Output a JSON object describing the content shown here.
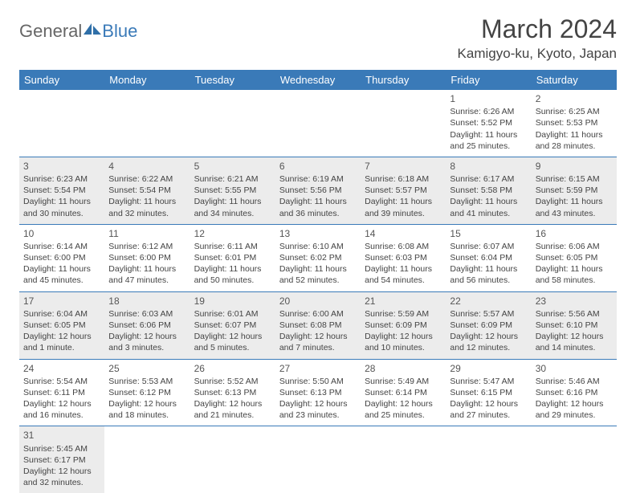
{
  "logo": {
    "text1": "General",
    "text2": "Blue",
    "icon_color": "#2f6fa8"
  },
  "title": "March 2024",
  "location": "Kamigyo-ku, Kyoto, Japan",
  "header_bg": "#3a7ab8",
  "shade_bg": "#ececec",
  "divider_color": "#3a7ab8",
  "weekdays": [
    "Sunday",
    "Monday",
    "Tuesday",
    "Wednesday",
    "Thursday",
    "Friday",
    "Saturday"
  ],
  "weeks": [
    {
      "shade": false,
      "days": [
        null,
        null,
        null,
        null,
        null,
        {
          "n": "1",
          "sunrise": "Sunrise: 6:26 AM",
          "sunset": "Sunset: 5:52 PM",
          "daylight": "Daylight: 11 hours and 25 minutes."
        },
        {
          "n": "2",
          "sunrise": "Sunrise: 6:25 AM",
          "sunset": "Sunset: 5:53 PM",
          "daylight": "Daylight: 11 hours and 28 minutes."
        }
      ]
    },
    {
      "shade": true,
      "days": [
        {
          "n": "3",
          "sunrise": "Sunrise: 6:23 AM",
          "sunset": "Sunset: 5:54 PM",
          "daylight": "Daylight: 11 hours and 30 minutes."
        },
        {
          "n": "4",
          "sunrise": "Sunrise: 6:22 AM",
          "sunset": "Sunset: 5:54 PM",
          "daylight": "Daylight: 11 hours and 32 minutes."
        },
        {
          "n": "5",
          "sunrise": "Sunrise: 6:21 AM",
          "sunset": "Sunset: 5:55 PM",
          "daylight": "Daylight: 11 hours and 34 minutes."
        },
        {
          "n": "6",
          "sunrise": "Sunrise: 6:19 AM",
          "sunset": "Sunset: 5:56 PM",
          "daylight": "Daylight: 11 hours and 36 minutes."
        },
        {
          "n": "7",
          "sunrise": "Sunrise: 6:18 AM",
          "sunset": "Sunset: 5:57 PM",
          "daylight": "Daylight: 11 hours and 39 minutes."
        },
        {
          "n": "8",
          "sunrise": "Sunrise: 6:17 AM",
          "sunset": "Sunset: 5:58 PM",
          "daylight": "Daylight: 11 hours and 41 minutes."
        },
        {
          "n": "9",
          "sunrise": "Sunrise: 6:15 AM",
          "sunset": "Sunset: 5:59 PM",
          "daylight": "Daylight: 11 hours and 43 minutes."
        }
      ]
    },
    {
      "shade": false,
      "days": [
        {
          "n": "10",
          "sunrise": "Sunrise: 6:14 AM",
          "sunset": "Sunset: 6:00 PM",
          "daylight": "Daylight: 11 hours and 45 minutes."
        },
        {
          "n": "11",
          "sunrise": "Sunrise: 6:12 AM",
          "sunset": "Sunset: 6:00 PM",
          "daylight": "Daylight: 11 hours and 47 minutes."
        },
        {
          "n": "12",
          "sunrise": "Sunrise: 6:11 AM",
          "sunset": "Sunset: 6:01 PM",
          "daylight": "Daylight: 11 hours and 50 minutes."
        },
        {
          "n": "13",
          "sunrise": "Sunrise: 6:10 AM",
          "sunset": "Sunset: 6:02 PM",
          "daylight": "Daylight: 11 hours and 52 minutes."
        },
        {
          "n": "14",
          "sunrise": "Sunrise: 6:08 AM",
          "sunset": "Sunset: 6:03 PM",
          "daylight": "Daylight: 11 hours and 54 minutes."
        },
        {
          "n": "15",
          "sunrise": "Sunrise: 6:07 AM",
          "sunset": "Sunset: 6:04 PM",
          "daylight": "Daylight: 11 hours and 56 minutes."
        },
        {
          "n": "16",
          "sunrise": "Sunrise: 6:06 AM",
          "sunset": "Sunset: 6:05 PM",
          "daylight": "Daylight: 11 hours and 58 minutes."
        }
      ]
    },
    {
      "shade": true,
      "days": [
        {
          "n": "17",
          "sunrise": "Sunrise: 6:04 AM",
          "sunset": "Sunset: 6:05 PM",
          "daylight": "Daylight: 12 hours and 1 minute."
        },
        {
          "n": "18",
          "sunrise": "Sunrise: 6:03 AM",
          "sunset": "Sunset: 6:06 PM",
          "daylight": "Daylight: 12 hours and 3 minutes."
        },
        {
          "n": "19",
          "sunrise": "Sunrise: 6:01 AM",
          "sunset": "Sunset: 6:07 PM",
          "daylight": "Daylight: 12 hours and 5 minutes."
        },
        {
          "n": "20",
          "sunrise": "Sunrise: 6:00 AM",
          "sunset": "Sunset: 6:08 PM",
          "daylight": "Daylight: 12 hours and 7 minutes."
        },
        {
          "n": "21",
          "sunrise": "Sunrise: 5:59 AM",
          "sunset": "Sunset: 6:09 PM",
          "daylight": "Daylight: 12 hours and 10 minutes."
        },
        {
          "n": "22",
          "sunrise": "Sunrise: 5:57 AM",
          "sunset": "Sunset: 6:09 PM",
          "daylight": "Daylight: 12 hours and 12 minutes."
        },
        {
          "n": "23",
          "sunrise": "Sunrise: 5:56 AM",
          "sunset": "Sunset: 6:10 PM",
          "daylight": "Daylight: 12 hours and 14 minutes."
        }
      ]
    },
    {
      "shade": false,
      "days": [
        {
          "n": "24",
          "sunrise": "Sunrise: 5:54 AM",
          "sunset": "Sunset: 6:11 PM",
          "daylight": "Daylight: 12 hours and 16 minutes."
        },
        {
          "n": "25",
          "sunrise": "Sunrise: 5:53 AM",
          "sunset": "Sunset: 6:12 PM",
          "daylight": "Daylight: 12 hours and 18 minutes."
        },
        {
          "n": "26",
          "sunrise": "Sunrise: 5:52 AM",
          "sunset": "Sunset: 6:13 PM",
          "daylight": "Daylight: 12 hours and 21 minutes."
        },
        {
          "n": "27",
          "sunrise": "Sunrise: 5:50 AM",
          "sunset": "Sunset: 6:13 PM",
          "daylight": "Daylight: 12 hours and 23 minutes."
        },
        {
          "n": "28",
          "sunrise": "Sunrise: 5:49 AM",
          "sunset": "Sunset: 6:14 PM",
          "daylight": "Daylight: 12 hours and 25 minutes."
        },
        {
          "n": "29",
          "sunrise": "Sunrise: 5:47 AM",
          "sunset": "Sunset: 6:15 PM",
          "daylight": "Daylight: 12 hours and 27 minutes."
        },
        {
          "n": "30",
          "sunrise": "Sunrise: 5:46 AM",
          "sunset": "Sunset: 6:16 PM",
          "daylight": "Daylight: 12 hours and 29 minutes."
        }
      ]
    },
    {
      "shade": true,
      "last": true,
      "days": [
        {
          "n": "31",
          "sunrise": "Sunrise: 5:45 AM",
          "sunset": "Sunset: 6:17 PM",
          "daylight": "Daylight: 12 hours and 32 minutes."
        },
        null,
        null,
        null,
        null,
        null,
        null
      ]
    }
  ]
}
